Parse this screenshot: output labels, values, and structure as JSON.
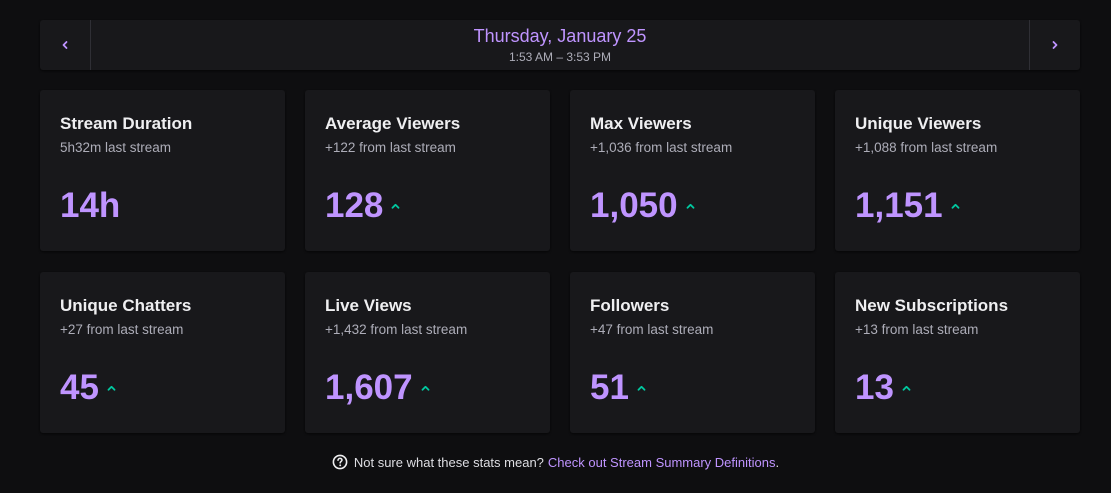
{
  "header": {
    "date": "Thursday, January 25",
    "time_range": "1:53 AM – 3:53 PM",
    "prev_icon": "chevron-left-icon",
    "next_icon": "chevron-right-icon"
  },
  "stats": [
    {
      "title": "Stream Duration",
      "sub": "5h32m last stream",
      "value": "14h",
      "trend": ""
    },
    {
      "title": "Average Viewers",
      "sub": "+122 from last stream",
      "value": "128",
      "trend": "up"
    },
    {
      "title": "Max Viewers",
      "sub": "+1,036 from last stream",
      "value": "1,050",
      "trend": "up"
    },
    {
      "title": "Unique Viewers",
      "sub": "+1,088 from last stream",
      "value": "1,151",
      "trend": "up"
    },
    {
      "title": "Unique Chatters",
      "sub": "+27 from last stream",
      "value": "45",
      "trend": "up"
    },
    {
      "title": "Live Views",
      "sub": "+1,432 from last stream",
      "value": "1,607",
      "trend": "up"
    },
    {
      "title": "Followers",
      "sub": "+47 from last stream",
      "value": "51",
      "trend": "up"
    },
    {
      "title": "New Subscriptions",
      "sub": "+13 from last stream",
      "value": "13",
      "trend": "up"
    }
  ],
  "footer": {
    "text": "Not sure what these stats mean?",
    "link": "Check out Stream Summary Definitions",
    "period": ".",
    "icon": "help-circle-icon"
  },
  "colors": {
    "accent": "#bf94ff",
    "trend_up": "#00c9a0",
    "card_bg": "#18181b",
    "page_bg": "#0e0e10"
  }
}
